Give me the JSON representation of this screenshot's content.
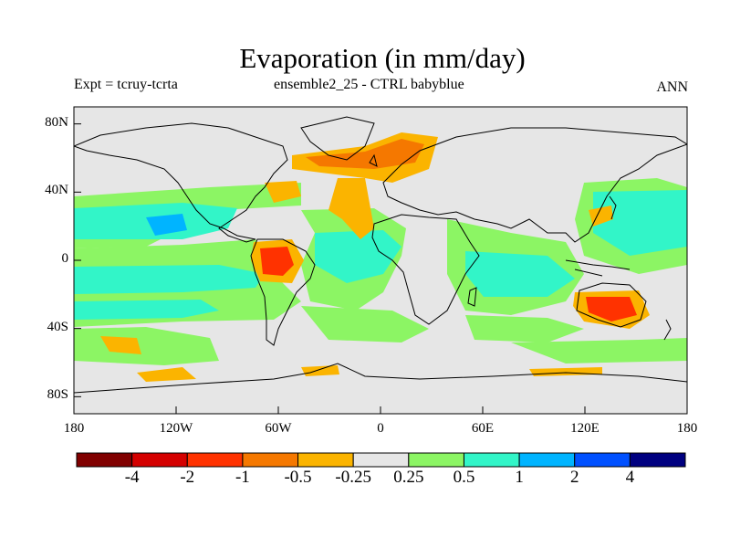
{
  "header": {
    "title": "Evaporation (in mm/day)",
    "left_label": "Expt = tcruy-tcrta",
    "center_label": "ensemble2_25 - CTRL babyblue",
    "right_label": "ANN"
  },
  "map": {
    "projection": "cylindrical-equidistant",
    "lon_range": [
      -180,
      180
    ],
    "lat_range": [
      -90,
      90
    ],
    "lat_ticks": [
      {
        "value": 80,
        "label": "80N"
      },
      {
        "value": 40,
        "label": "40N"
      },
      {
        "value": 0,
        "label": "0"
      },
      {
        "value": -40,
        "label": "40S"
      },
      {
        "value": -80,
        "label": "80S"
      }
    ],
    "lon_ticks": [
      {
        "value": -180,
        "label": "180"
      },
      {
        "value": -120,
        "label": "120W"
      },
      {
        "value": -60,
        "label": "60W"
      },
      {
        "value": 0,
        "label": "0"
      },
      {
        "value": 60,
        "label": "60E"
      },
      {
        "value": 120,
        "label": "120E"
      },
      {
        "value": 180,
        "label": "180"
      }
    ],
    "neutral_color": "#e6e6e6"
  },
  "colorbar": {
    "colors": [
      "#800000",
      "#d40000",
      "#ff3200",
      "#f57800",
      "#fbb400",
      "#e6e6e6",
      "#8cf564",
      "#32f5c8",
      "#00b4ff",
      "#0050ff",
      "#000080"
    ],
    "labels": [
      "-4",
      "-2",
      "-1",
      "-0.5",
      "-0.25",
      "0.25",
      "0.5",
      "1",
      "2",
      "4"
    ]
  }
}
